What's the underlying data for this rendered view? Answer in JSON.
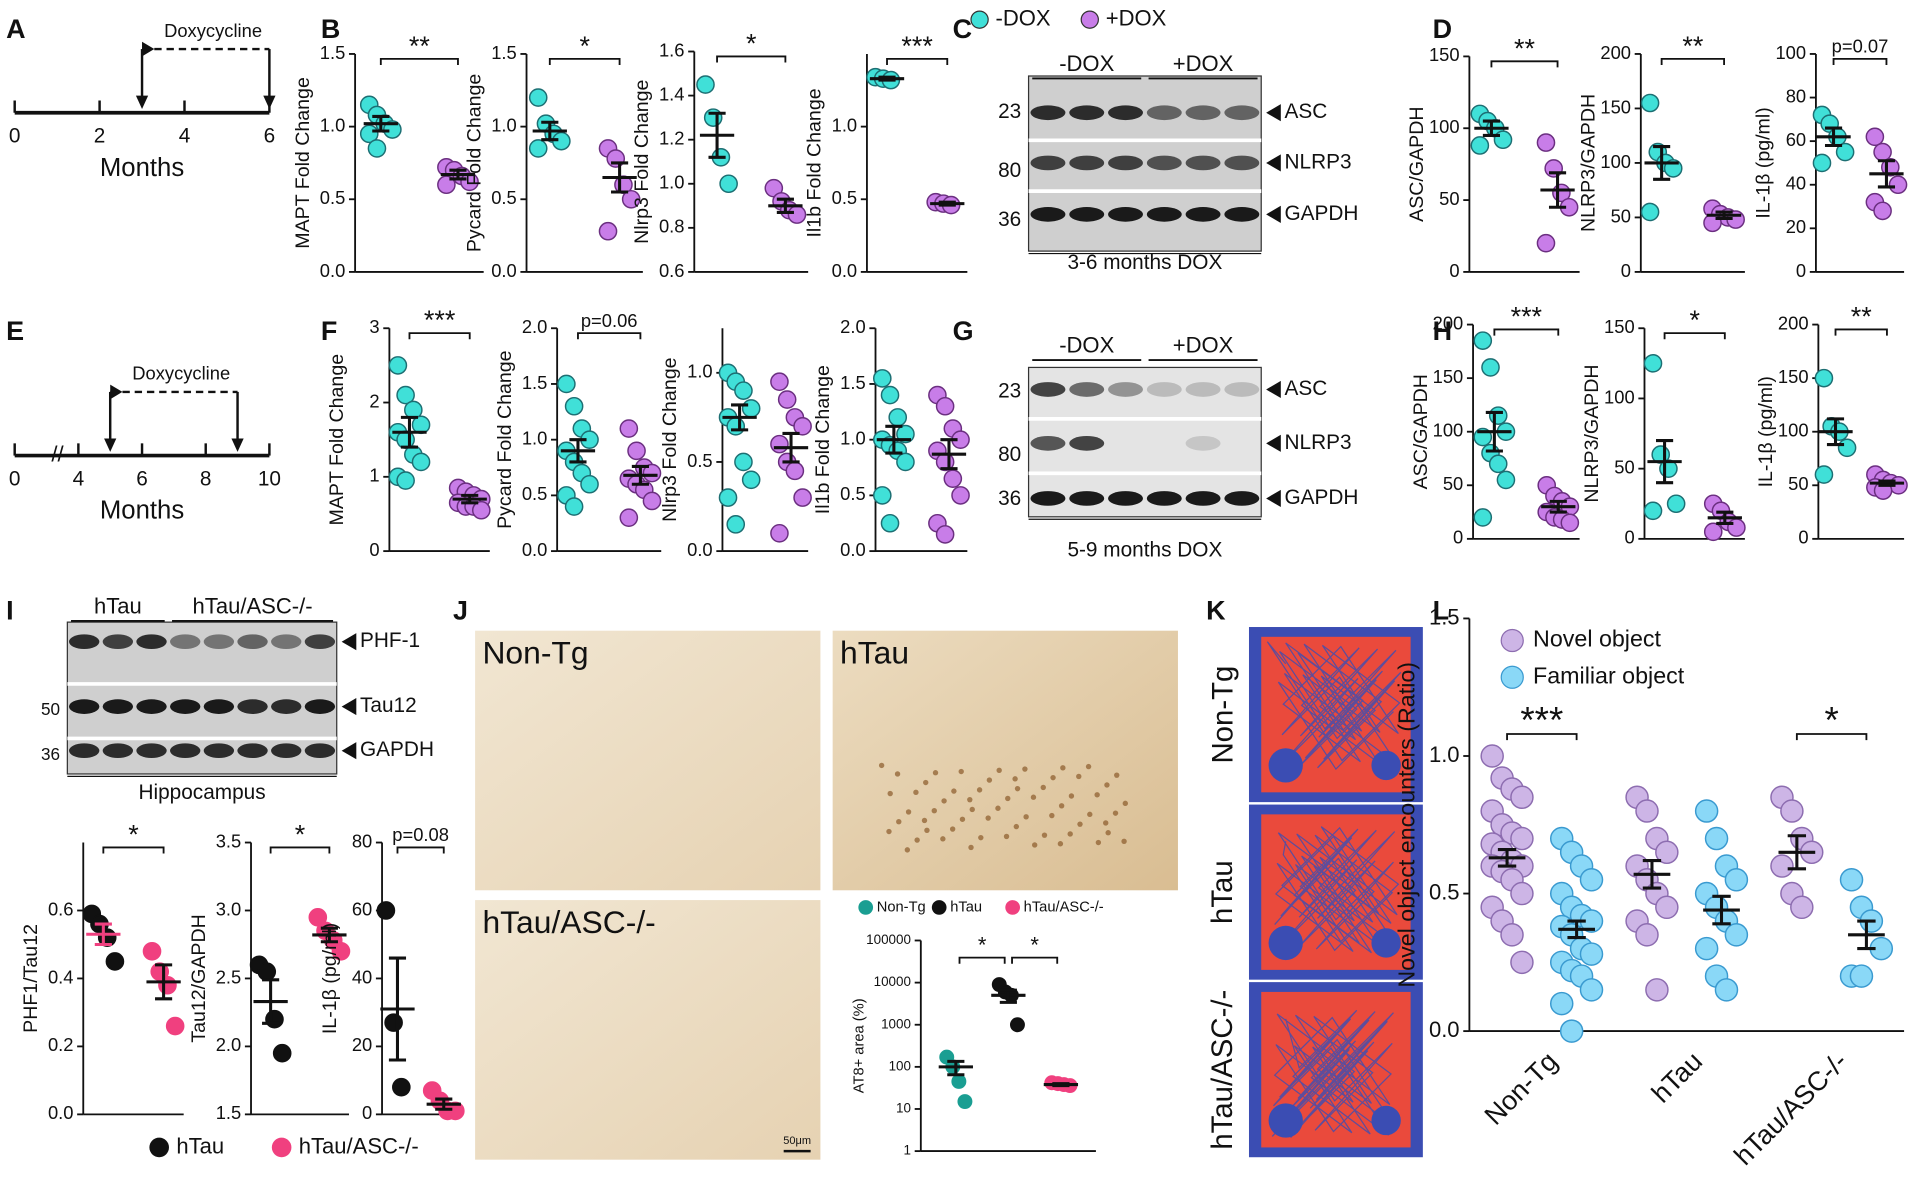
{
  "panel_labels": [
    "A",
    "B",
    "C",
    "D",
    "E",
    "F",
    "G",
    "H",
    "I",
    "J",
    "K",
    "L"
  ],
  "timelines": [
    {
      "label": "Doxycycline",
      "ticks": [
        0,
        2,
        4,
        6
      ],
      "xlabel": "Months",
      "doxycycline_months": [
        3,
        6
      ]
    },
    {
      "label": "Doxycycline",
      "ticks": [
        0,
        4,
        6,
        8,
        10
      ],
      "xlabel": "Months",
      "doxycycline_months": [
        5,
        9
      ]
    }
  ],
  "blots": [
    {
      "legend": [
        {
          "name": "-DOX",
          "color": "#40e0d8"
        },
        {
          "name": "+DOX",
          "color": "#c87de8"
        }
      ],
      "header": [
        "-DOX",
        "+DOX"
      ],
      "markers": [
        23,
        80,
        36
      ],
      "bands": [
        "ASC",
        "NLRP3",
        "GAPDH"
      ],
      "caption": "3-6 months DOX"
    },
    {
      "header": [
        "-DOX",
        "+DOX"
      ],
      "markers": [
        23,
        80,
        36
      ],
      "bands": [
        "ASC",
        "NLRP3",
        "GAPDH"
      ],
      "caption": "5-9 months DOX"
    },
    {
      "header": [
        "hTau",
        "hTau/ASC-/-"
      ],
      "markers": [
        50,
        36
      ],
      "bands": [
        "PHF-1",
        "Tau12",
        "GAPDH"
      ],
      "caption": "Hippocampus"
    }
  ],
  "i_legend": [
    {
      "name": "hTau",
      "color": "#111111"
    },
    {
      "name": "hTau/ASC-/-",
      "color": "#f0407f"
    }
  ],
  "images": {
    "J": [
      "Non-Tg",
      "hTau",
      "hTau/ASC-/-"
    ],
    "scale_bar": "50μm",
    "K": [
      "Non-Tg",
      "hTau",
      "hTau/ASC-/-"
    ]
  },
  "chart_data": [
    {
      "type": "dot",
      "ylabel": "MAPT Fold Change",
      "ylim": [
        0,
        1.5
      ],
      "yticks": [
        {
          "value": 0,
          "label": "0.0"
        },
        {
          "value": 0.5,
          "label": "0.5"
        },
        {
          "value": 1,
          "label": "1.0"
        },
        {
          "value": 1.5,
          "label": "1.5"
        }
      ],
      "annotation": "**",
      "series": [
        {
          "color": "#40e0d8",
          "values": [
            1.15,
            1.08,
            1.02,
            0.98,
            0.95,
            0.85
          ],
          "mean": 1.02,
          "sem": 0.05
        },
        {
          "color": "#c87de8",
          "values": [
            0.72,
            0.7,
            0.66,
            0.62,
            0.6
          ],
          "mean": 0.67,
          "sem": 0.03
        }
      ]
    },
    {
      "type": "dot",
      "ylabel": "Pycard Fold Change",
      "ylim": [
        0,
        1.5
      ],
      "yticks": [
        {
          "value": 0,
          "label": "0.0"
        },
        {
          "value": 0.5,
          "label": "0.5"
        },
        {
          "value": 1,
          "label": "1.0"
        },
        {
          "value": 1.5,
          "label": "1.5"
        }
      ],
      "annotation": "*",
      "series": [
        {
          "color": "#40e0d8",
          "values": [
            1.2,
            1.02,
            0.95,
            0.9,
            0.85
          ],
          "mean": 0.97,
          "sem": 0.06
        },
        {
          "color": "#c87de8",
          "values": [
            0.85,
            0.78,
            0.6,
            0.5,
            0.28
          ],
          "mean": 0.65,
          "sem": 0.1
        }
      ]
    },
    {
      "type": "dot",
      "ylabel": "Nlrp3 Fold Change",
      "ylim": [
        0.6,
        1.6
      ],
      "yticks": [
        0.6,
        0.8,
        {
          "value": 1,
          "label": "1.0"
        },
        1.2,
        1.4,
        1.6
      ],
      "annotation": "*",
      "series": [
        {
          "color": "#40e0d8",
          "values": [
            1.45,
            1.3,
            1.12,
            1.0
          ],
          "mean": 1.22,
          "sem": 0.1
        },
        {
          "color": "#c87de8",
          "values": [
            0.98,
            0.92,
            0.88,
            0.86
          ],
          "mean": 0.9,
          "sem": 0.03
        }
      ]
    },
    {
      "type": "dot",
      "ylabel": "Il1b Fold Change",
      "ylim": [
        0,
        1.5
      ],
      "yticks": [
        {
          "value": 0,
          "label": "0.0"
        },
        {
          "value": 0.5,
          "label": "0.5"
        },
        {
          "value": 1,
          "label": "1.0"
        }
      ],
      "annotation": "***",
      "series": [
        {
          "color": "#40e0d8",
          "values": [
            1.34,
            1.33,
            1.32
          ],
          "mean": 1.33,
          "sem": 0.01
        },
        {
          "color": "#c87de8",
          "values": [
            0.48,
            0.47,
            0.46
          ],
          "mean": 0.47,
          "sem": 0.01
        }
      ]
    },
    {
      "type": "dot",
      "ylabel": "ASC/GAPDH",
      "ylim": [
        0,
        150
      ],
      "yticks": [
        0,
        50,
        100,
        150
      ],
      "annotation": "**",
      "series": [
        {
          "color": "#40e0d8",
          "values": [
            110,
            105,
            100,
            92,
            88
          ],
          "mean": 100,
          "sem": 5
        },
        {
          "color": "#c87de8",
          "values": [
            90,
            72,
            55,
            45,
            20
          ],
          "mean": 57,
          "sem": 12
        }
      ]
    },
    {
      "type": "dot",
      "ylabel": "NLRP3/GAPDH",
      "ylim": [
        0,
        200
      ],
      "yticks": [
        0,
        50,
        100,
        150,
        200
      ],
      "annotation": "**",
      "series": [
        {
          "color": "#40e0d8",
          "values": [
            155,
            110,
            100,
            95,
            55
          ],
          "mean": 100,
          "sem": 15
        },
        {
          "color": "#c87de8",
          "values": [
            58,
            53,
            50,
            48,
            45
          ],
          "mean": 52,
          "sem": 3
        }
      ]
    },
    {
      "type": "dot",
      "ylabel": "IL-1β (pg/ml)",
      "ylim": [
        0,
        100
      ],
      "yticks": [
        0,
        20,
        40,
        60,
        80,
        100
      ],
      "annotation": "p=0.07",
      "series": [
        {
          "color": "#40e0d8",
          "values": [
            72,
            68,
            62,
            55,
            50
          ],
          "mean": 62,
          "sem": 4
        },
        {
          "color": "#c87de8",
          "values": [
            62,
            55,
            48,
            40,
            32,
            28
          ],
          "mean": 45,
          "sem": 6
        }
      ]
    },
    {
      "type": "dot",
      "ylabel": "MAPT Fold Change",
      "ylim": [
        0,
        3
      ],
      "yticks": [
        0,
        1,
        2,
        3
      ],
      "annotation": "***",
      "series": [
        {
          "color": "#40e0d8",
          "values": [
            2.5,
            2.1,
            1.9,
            1.7,
            1.6,
            1.5,
            1.3,
            1.2,
            1.0,
            0.95
          ],
          "mean": 1.6,
          "sem": 0.2
        },
        {
          "color": "#c87de8",
          "values": [
            0.85,
            0.8,
            0.75,
            0.7,
            0.65,
            0.6,
            0.6,
            0.55
          ],
          "mean": 0.7,
          "sem": 0.05
        }
      ]
    },
    {
      "type": "dot",
      "ylabel": "Pycard Fold Change",
      "ylim": [
        0,
        2
      ],
      "yticks": [
        {
          "value": 0,
          "label": "0.0"
        },
        {
          "value": 0.5,
          "label": "0.5"
        },
        {
          "value": 1,
          "label": "1.0"
        },
        {
          "value": 1.5,
          "label": "1.5"
        },
        {
          "value": 2,
          "label": "2.0"
        }
      ],
      "annotation": "p=0.06",
      "series": [
        {
          "color": "#40e0d8",
          "values": [
            1.5,
            1.3,
            1.1,
            1.0,
            0.9,
            0.8,
            0.7,
            0.6,
            0.5,
            0.4
          ],
          "mean": 0.9,
          "sem": 0.1
        },
        {
          "color": "#c87de8",
          "values": [
            1.1,
            0.9,
            0.75,
            0.7,
            0.65,
            0.6,
            0.55,
            0.45,
            0.3
          ],
          "mean": 0.68,
          "sem": 0.08
        }
      ]
    },
    {
      "type": "dot",
      "ylabel": "Nlrp3 Fold Change",
      "ylim": [
        0,
        1.25
      ],
      "yticks": [
        {
          "value": 0,
          "label": "0.0"
        },
        {
          "value": 0.5,
          "label": "0.5"
        },
        {
          "value": 1,
          "label": "1.0"
        }
      ],
      "series": [
        {
          "color": "#40e0d8",
          "values": [
            1.0,
            0.95,
            0.9,
            0.8,
            0.75,
            0.7,
            0.5,
            0.4,
            0.3,
            0.15
          ],
          "mean": 0.75,
          "sem": 0.07
        },
        {
          "color": "#c87de8",
          "values": [
            0.95,
            0.85,
            0.75,
            0.7,
            0.6,
            0.5,
            0.45,
            0.3,
            0.1
          ],
          "mean": 0.58,
          "sem": 0.08
        }
      ]
    },
    {
      "type": "dot",
      "ylabel": "Il1b Fold Change",
      "ylim": [
        0,
        2
      ],
      "yticks": [
        {
          "value": 0,
          "label": "0.0"
        },
        {
          "value": 0.5,
          "label": "0.5"
        },
        {
          "value": 1,
          "label": "1.0"
        },
        {
          "value": 1.5,
          "label": "1.5"
        },
        {
          "value": 2,
          "label": "2.0"
        }
      ],
      "series": [
        {
          "color": "#40e0d8",
          "values": [
            1.55,
            1.4,
            1.2,
            1.05,
            1.0,
            0.95,
            0.9,
            0.8,
            0.5,
            0.25
          ],
          "mean": 1.0,
          "sem": 0.12
        },
        {
          "color": "#c87de8",
          "values": [
            1.4,
            1.3,
            1.1,
            1.0,
            0.9,
            0.8,
            0.65,
            0.5,
            0.25,
            0.15
          ],
          "mean": 0.87,
          "sem": 0.13
        }
      ]
    },
    {
      "type": "dot",
      "ylabel": "ASC/GAPDH",
      "ylim": [
        0,
        200
      ],
      "yticks": [
        0,
        50,
        100,
        150,
        200
      ],
      "annotation": "***",
      "series": [
        {
          "color": "#40e0d8",
          "values": [
            185,
            160,
            115,
            100,
            95,
            80,
            70,
            55,
            20
          ],
          "mean": 100,
          "sem": 18
        },
        {
          "color": "#c87de8",
          "values": [
            50,
            40,
            35,
            30,
            25,
            20,
            18,
            15
          ],
          "mean": 30,
          "sem": 5
        }
      ]
    },
    {
      "type": "dot",
      "ylabel": "NLRP3/GAPDH",
      "ylim": [
        0,
        150
      ],
      "yticks": [
        0,
        50,
        100,
        150
      ],
      "annotation": "*",
      "series": [
        {
          "color": "#40e0d8",
          "values": [
            125,
            60,
            50,
            25,
            20
          ],
          "mean": 55,
          "sem": 15
        },
        {
          "color": "#c87de8",
          "values": [
            25,
            20,
            12,
            8,
            5
          ],
          "mean": 15,
          "sem": 4
        }
      ]
    },
    {
      "type": "dot",
      "ylabel": "IL-1β (pg/ml)",
      "ylim": [
        0,
        200
      ],
      "yticks": [
        0,
        50,
        100,
        150,
        200
      ],
      "annotation": "**",
      "series": [
        {
          "color": "#40e0d8",
          "values": [
            150,
            105,
            100,
            85,
            60
          ],
          "mean": 100,
          "sem": 12
        },
        {
          "color": "#c87de8",
          "values": [
            60,
            55,
            52,
            50,
            48,
            45
          ],
          "mean": 52,
          "sem": 2
        }
      ]
    },
    {
      "type": "dot",
      "ylabel": "PHF1/Tau12",
      "ylim": [
        0,
        0.8
      ],
      "yticks": [
        {
          "value": 0,
          "label": "0.0"
        },
        0.2,
        0.4,
        0.6
      ],
      "annotation": "*",
      "series": [
        {
          "color": "#111111",
          "values": [
            0.59,
            0.56,
            0.52,
            0.45
          ],
          "mean": 0.53,
          "sem": 0.03
        },
        {
          "color": "#f0407f",
          "values": [
            0.48,
            0.42,
            0.38,
            0.26
          ],
          "mean": 0.39,
          "sem": 0.05
        }
      ]
    },
    {
      "type": "dot",
      "ylabel": "Tau12/GAPDH",
      "ylim": [
        1.5,
        3.5
      ],
      "yticks": [
        1.5,
        {
          "value": 2,
          "label": "2.0"
        },
        2.5,
        {
          "value": 3,
          "label": "3.0"
        },
        3.5
      ],
      "annotation": "*",
      "series": [
        {
          "color": "#111111",
          "values": [
            2.6,
            2.55,
            2.2,
            1.95
          ],
          "mean": 2.33,
          "sem": 0.16
        },
        {
          "color": "#f0407f",
          "values": [
            2.95,
            2.85,
            2.78,
            2.7
          ],
          "mean": 2.82,
          "sem": 0.05
        }
      ]
    },
    {
      "type": "dot",
      "ylabel": "IL-1β (pg/ml)",
      "ylim": [
        0,
        80
      ],
      "yticks": [
        0,
        20,
        40,
        60,
        80
      ],
      "annotation": "p=0.08",
      "series": [
        {
          "color": "#111111",
          "values": [
            60,
            27,
            8
          ],
          "mean": 31,
          "sem": 15
        },
        {
          "color": "#f0407f",
          "values": [
            7,
            4,
            1,
            1
          ],
          "mean": 3,
          "sem": 1.5
        }
      ]
    },
    {
      "type": "dot",
      "ylabel": "AT8+ area (%)",
      "log": true,
      "ylim": [
        1,
        100000
      ],
      "yticks": [
        1,
        10,
        100,
        1000,
        10000,
        100000
      ],
      "annotations": [
        "*",
        "*"
      ],
      "series": [
        {
          "name": "Non-Tg",
          "color": "#1a9e92",
          "values": [
            170,
            100,
            45,
            15
          ],
          "mean": 100,
          "sem": 35
        },
        {
          "name": "hTau",
          "color": "#111111",
          "values": [
            9000,
            6000,
            5000,
            1000
          ],
          "mean": 5000,
          "sem": 1600
        },
        {
          "name": "hTau/ASC-/-",
          "color": "#f0407f",
          "values": [
            42,
            40,
            38,
            36
          ],
          "mean": 38,
          "sem": 2
        }
      ]
    },
    {
      "type": "grouped-dot",
      "ylabel": "Novel object encounters (Ratio)",
      "ylim": [
        0,
        1.5
      ],
      "yticks": [
        {
          "value": 0,
          "label": "0.0"
        },
        {
          "value": 0.5,
          "label": "0.5"
        },
        {
          "value": 1,
          "label": "1.0"
        },
        {
          "value": 1.5,
          "label": "1.5"
        }
      ],
      "categories": [
        "Non-Tg",
        "hTau",
        "hTau/ASC-/-"
      ],
      "annotations": [
        "***",
        null,
        "*"
      ],
      "series": [
        {
          "name": "Novel object",
          "color": "#cdb5e6",
          "values": [
            [
              1.0,
              0.92,
              0.88,
              0.85,
              0.8,
              0.75,
              0.72,
              0.7,
              0.68,
              0.65,
              0.62,
              0.6,
              0.6,
              0.58,
              0.55,
              0.5,
              0.45,
              0.4,
              0.35,
              0.25
            ],
            [
              0.85,
              0.8,
              0.7,
              0.65,
              0.6,
              0.55,
              0.5,
              0.45,
              0.4,
              0.35,
              0.15
            ],
            [
              0.85,
              0.8,
              0.7,
              0.65,
              0.6,
              0.5,
              0.45
            ]
          ],
          "mean": [
            0.63,
            0.57,
            0.65
          ],
          "sem": [
            0.03,
            0.05,
            0.06
          ]
        },
        {
          "name": "Familiar object",
          "color": "#8ad8f7",
          "values": [
            [
              0.7,
              0.65,
              0.6,
              0.55,
              0.5,
              0.45,
              0.42,
              0.4,
              0.38,
              0.35,
              0.3,
              0.28,
              0.25,
              0.22,
              0.2,
              0.15,
              0.1,
              0.0
            ],
            [
              0.8,
              0.7,
              0.6,
              0.55,
              0.5,
              0.45,
              0.4,
              0.35,
              0.3,
              0.2,
              0.15
            ],
            [
              0.55,
              0.45,
              0.4,
              0.3,
              0.2,
              0.2
            ]
          ],
          "mean": [
            0.37,
            0.44,
            0.35
          ],
          "sem": [
            0.03,
            0.05,
            0.05
          ]
        }
      ]
    }
  ]
}
